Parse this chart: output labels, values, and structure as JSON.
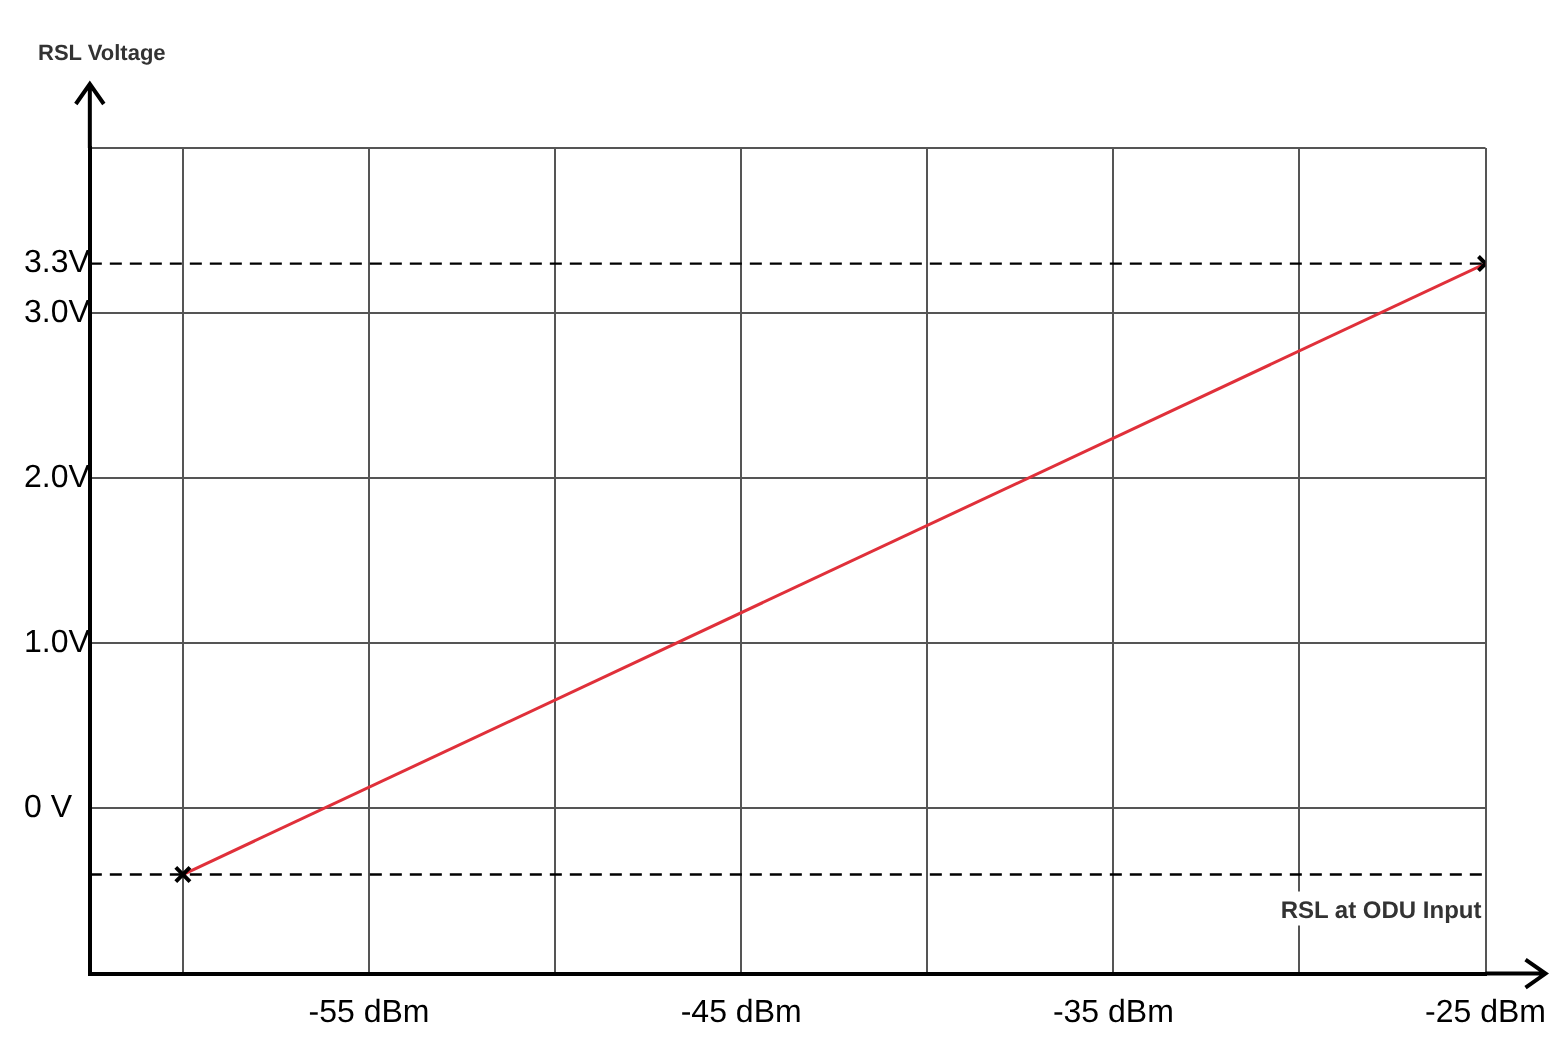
{
  "chart_data": {
    "type": "line",
    "ylabel": "RSL Voltage",
    "xlabel": "RSL at ODU Input",
    "xlim": [
      -62.5,
      -25
    ],
    "xticks": [
      {
        "value": -60,
        "label": null
      },
      {
        "value": -55,
        "label": "-55 dBm"
      },
      {
        "value": -50,
        "label": null
      },
      {
        "value": -45,
        "label": "-45 dBm"
      },
      {
        "value": -40,
        "label": null
      },
      {
        "value": -35,
        "label": "-35 dBm"
      },
      {
        "value": -30,
        "label": null
      },
      {
        "value": -25,
        "label": "-25 dBm"
      }
    ],
    "ylim": [
      -1,
      4
    ],
    "yticks": [
      {
        "value": 0,
        "label": "0 V"
      },
      {
        "value": 1,
        "label": "1.0V"
      },
      {
        "value": 2,
        "label": "2.0V"
      },
      {
        "value": 3,
        "label": "3.0V"
      },
      {
        "value": 3.3,
        "label": "3.3V"
      },
      {
        "value": 4,
        "label": null
      }
    ],
    "series": [
      {
        "color": "#e0303a",
        "x": [
          -60,
          -25
        ],
        "values": [
          -0.4,
          3.3
        ]
      }
    ],
    "marker": "cross",
    "grid": true,
    "legend": false,
    "ref_lines": [
      {
        "axis": "y",
        "value": 3.3,
        "line_style": "dashed",
        "color": "#000000"
      },
      {
        "axis": "y",
        "value": -0.4,
        "line_style": "dashed",
        "color": "#000000"
      }
    ]
  }
}
